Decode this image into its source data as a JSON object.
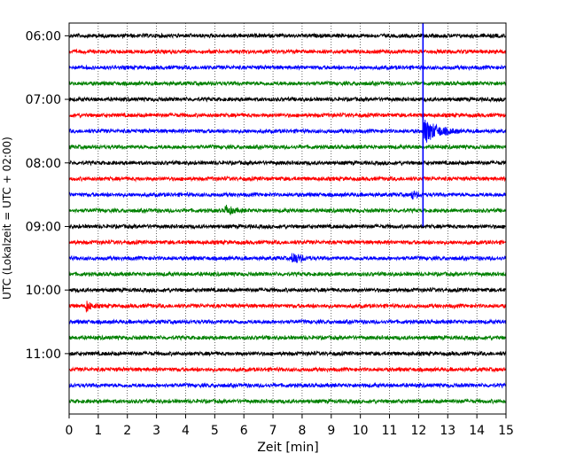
{
  "chart_data": {
    "type": "line",
    "title": "",
    "xlabel": "Zeit  [min]",
    "ylabel": "UTC (Lokalzeit = UTC + 02:00)",
    "xlim": [
      0,
      15
    ],
    "xticks": [
      0,
      1,
      2,
      3,
      4,
      5,
      6,
      7,
      8,
      9,
      10,
      11,
      12,
      13,
      14,
      15
    ],
    "ylim_hours_top": 5.8,
    "ylim_hours_bottom": 11.95,
    "yticks": [
      {
        "label": "06:00",
        "hour": 6.0
      },
      {
        "label": "07:00",
        "hour": 7.0
      },
      {
        "label": "08:00",
        "hour": 8.0
      },
      {
        "label": "09:00",
        "hour": 9.0
      },
      {
        "label": "10:00",
        "hour": 10.0
      },
      {
        "label": "11:00",
        "hour": 11.0
      }
    ],
    "grid": "vertical dotted",
    "trace_interval_minutes": 15,
    "trace_colors": [
      "#000000",
      "#ff0000",
      "#0000ff",
      "#008000"
    ],
    "series": [
      {
        "start": "06:00",
        "color": "#000000"
      },
      {
        "start": "06:15",
        "color": "#ff0000"
      },
      {
        "start": "06:30",
        "color": "#0000ff"
      },
      {
        "start": "06:45",
        "color": "#008000"
      },
      {
        "start": "07:00",
        "color": "#000000"
      },
      {
        "start": "07:15",
        "color": "#ff0000"
      },
      {
        "start": "07:30",
        "color": "#0000ff",
        "events": [
          {
            "minute": 12.2,
            "amplitude": 14,
            "duration": 1.2
          }
        ]
      },
      {
        "start": "07:45",
        "color": "#008000"
      },
      {
        "start": "08:00",
        "color": "#000000"
      },
      {
        "start": "08:15",
        "color": "#ff0000"
      },
      {
        "start": "08:30",
        "color": "#0000ff",
        "events": [
          {
            "minute": 11.8,
            "amplitude": 4,
            "duration": 0.4
          }
        ]
      },
      {
        "start": "08:45",
        "color": "#008000",
        "events": [
          {
            "minute": 5.4,
            "amplitude": 5,
            "duration": 0.6
          }
        ]
      },
      {
        "start": "09:00",
        "color": "#000000"
      },
      {
        "start": "09:15",
        "color": "#ff0000"
      },
      {
        "start": "09:30",
        "color": "#0000ff",
        "events": [
          {
            "minute": 7.7,
            "amplitude": 6,
            "duration": 0.7
          }
        ]
      },
      {
        "start": "09:45",
        "color": "#008000"
      },
      {
        "start": "10:00",
        "color": "#000000"
      },
      {
        "start": "10:15",
        "color": "#ff0000",
        "events": [
          {
            "minute": 0.6,
            "amplitude": 6,
            "duration": 0.4
          }
        ]
      },
      {
        "start": "10:30",
        "color": "#0000ff"
      },
      {
        "start": "10:45",
        "color": "#008000"
      },
      {
        "start": "11:00",
        "color": "#000000"
      },
      {
        "start": "11:15",
        "color": "#ff0000"
      },
      {
        "start": "11:30",
        "color": "#0000ff"
      },
      {
        "start": "11:45",
        "color": "#008000"
      }
    ],
    "spike": {
      "minute": 12.15,
      "from": "06:00",
      "to": "09:00",
      "color": "#0000ff"
    }
  }
}
